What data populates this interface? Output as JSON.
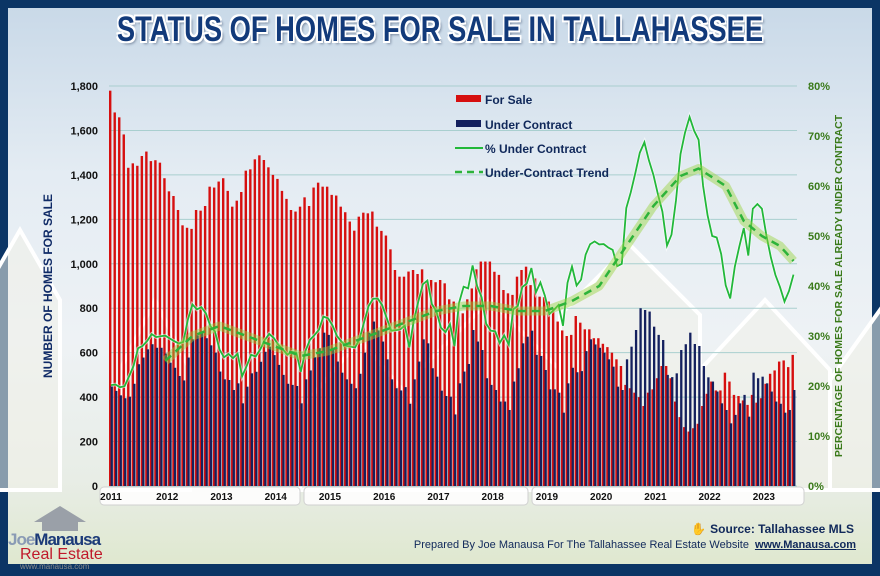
{
  "title": "STATUS OF HOMES FOR SALE IN TALLAHASSEE",
  "colors": {
    "for_sale": "#d60f0f",
    "under_contract": "#14205e",
    "pct_line": "#22b83a",
    "trend": "#2db33a",
    "frame": "#0b3565",
    "title": "#123a7a"
  },
  "chart_data": {
    "type": "bar",
    "title": "STATUS OF HOMES FOR SALE IN TALLAHASSEE",
    "ylabel": "NUMBER OF HOMES FOR SALE",
    "ylabel_right": "PERCENTAGE OF HOMES FOR SALE ALREADY UNDER CONTRACT",
    "ylim": [
      0,
      1800
    ],
    "ylim_right": [
      0,
      80
    ],
    "yticks": [
      "0",
      "200",
      "400",
      "600",
      "800",
      "1,000",
      "1,200",
      "1,400",
      "1,600",
      "1,800"
    ],
    "yticks_right": [
      "0%",
      "10%",
      "20%",
      "30%",
      "40%",
      "50%",
      "60%",
      "70%",
      "80%"
    ],
    "xticks": [
      "2011",
      "2012",
      "2013",
      "2014",
      "2015",
      "2016",
      "2017",
      "2018",
      "2019",
      "2020",
      "2021",
      "2022",
      "2023"
    ],
    "x_start": "2011-01",
    "x_end": "2023-08",
    "grid": true,
    "legend_position": "top-center",
    "legend": [
      "For Sale",
      "Under Contract",
      "% Under Contract",
      "Under-Contract Trend"
    ],
    "series": [
      {
        "name": "For Sale",
        "type": "bar",
        "values": [
          1779,
          1681,
          1659,
          1582,
          1432,
          1452,
          1441,
          1485,
          1505,
          1462,
          1466,
          1455,
          1385,
          1326,
          1305,
          1242,
          1173,
          1162,
          1157,
          1242,
          1239,
          1260,
          1347,
          1343,
          1370,
          1385,
          1328,
          1257,
          1284,
          1323,
          1419,
          1425,
          1470,
          1488,
          1467,
          1434,
          1400,
          1382,
          1328,
          1292,
          1242,
          1235,
          1257,
          1299,
          1260,
          1343,
          1365,
          1347,
          1347,
          1310,
          1307,
          1257,
          1232,
          1190,
          1149,
          1212,
          1230,
          1227,
          1235,
          1167,
          1148,
          1127,
          1065,
          972,
          942,
          942,
          965,
          972,
          954,
          975,
          920,
          927,
          917,
          927,
          912,
          840,
          830,
          800,
          777,
          840,
          889,
          975,
          1010,
          1010,
          1010,
          964,
          950,
          882,
          867,
          860,
          942,
          972,
          987,
          904,
          934,
          852,
          850,
          830,
          800,
          740,
          700,
          675,
          680,
          765,
          735,
          705,
          705,
          665,
          665,
          640,
          625,
          600,
          570,
          540,
          455,
          440,
          420,
          400,
          360,
          420,
          435,
          485,
          540,
          540,
          485,
          380,
          310,
          265,
          245,
          260,
          280,
          360,
          415,
          470,
          430,
          430,
          510,
          470,
          410,
          405,
          385,
          365,
          410,
          375,
          395,
          460,
          505,
          520,
          560,
          565,
          535,
          590
        ]
      },
      {
        "name": "Under Contract",
        "type": "bar",
        "values": [
          450,
          428,
          408,
          395,
          402,
          460,
          548,
          578,
          615,
          638,
          622,
          622,
          596,
          555,
          532,
          495,
          475,
          578,
          660,
          678,
          690,
          665,
          633,
          600,
          515,
          480,
          477,
          432,
          462,
          372,
          447,
          507,
          514,
          559,
          604,
          627,
          589,
          545,
          500,
          460,
          455,
          450,
          372,
          480,
          520,
          580,
          620,
          690,
          680,
          620,
          560,
          510,
          480,
          460,
          440,
          505,
          600,
          690,
          740,
          700,
          650,
          570,
          480,
          440,
          430,
          445,
          370,
          480,
          560,
          660,
          642,
          530,
          492,
          429,
          405,
          402,
          322,
          462,
          515,
          549,
          702,
          650,
          612,
          485,
          455,
          432,
          380,
          380,
          342,
          470,
          530,
          642,
          672,
          699,
          590,
          585,
          522,
          435,
          435,
          420,
          330,
          462,
          532,
          512,
          517,
          607,
          660,
          637,
          622,
          600,
          570,
          537,
          447,
          432,
          570,
          627,
          702,
          800,
          792,
          785,
          717,
          680,
          657,
          500,
          490,
          507,
          612,
          638,
          690,
          639,
          630,
          540,
          489,
          470,
          425,
          372,
          342,
          282,
          320,
          372,
          410,
          312,
          510,
          485,
          492,
          462,
          425,
          380,
          370,
          330,
          342,
          432
        ]
      },
      {
        "name": "% Under Contract",
        "type": "line",
        "definition": "Under Contract / (For Sale + Under Contract)"
      },
      {
        "name": "Under-Contract Trend",
        "type": "dashed-line",
        "points": [
          {
            "month": "2012-01",
            "pct": 25
          },
          {
            "month": "2012-07",
            "pct": 30
          },
          {
            "month": "2013-01",
            "pct": 32
          },
          {
            "month": "2013-07",
            "pct": 30
          },
          {
            "month": "2014-01",
            "pct": 28
          },
          {
            "month": "2014-07",
            "pct": 26
          },
          {
            "month": "2015-01",
            "pct": 27
          },
          {
            "month": "2015-07",
            "pct": 29
          },
          {
            "month": "2016-01",
            "pct": 31
          },
          {
            "month": "2016-07",
            "pct": 33
          },
          {
            "month": "2017-01",
            "pct": 35
          },
          {
            "month": "2017-07",
            "pct": 36
          },
          {
            "month": "2018-01",
            "pct": 36
          },
          {
            "month": "2018-07",
            "pct": 35
          },
          {
            "month": "2019-01",
            "pct": 35
          },
          {
            "month": "2019-07",
            "pct": 37
          },
          {
            "month": "2020-01",
            "pct": 40
          },
          {
            "month": "2020-07",
            "pct": 48
          },
          {
            "month": "2021-01",
            "pct": 56
          },
          {
            "month": "2021-07",
            "pct": 62
          },
          {
            "month": "2021-11",
            "pct": 63.5
          },
          {
            "month": "2022-05",
            "pct": 60
          },
          {
            "month": "2022-09",
            "pct": 53
          },
          {
            "month": "2023-01",
            "pct": 50
          },
          {
            "month": "2023-05",
            "pct": 48
          },
          {
            "month": "2023-08",
            "pct": 45
          }
        ]
      }
    ]
  },
  "footer": {
    "source": "Source: Tallahassee MLS",
    "prepared": "Prepared By Joe Manausa For The Tallahassee Real Estate Website",
    "website": "www.Manausa.com"
  },
  "logo": {
    "line1a": "Joe",
    "line1b": "Manausa",
    "line2": "Real Estate",
    "line3": "www.manausa.com"
  }
}
